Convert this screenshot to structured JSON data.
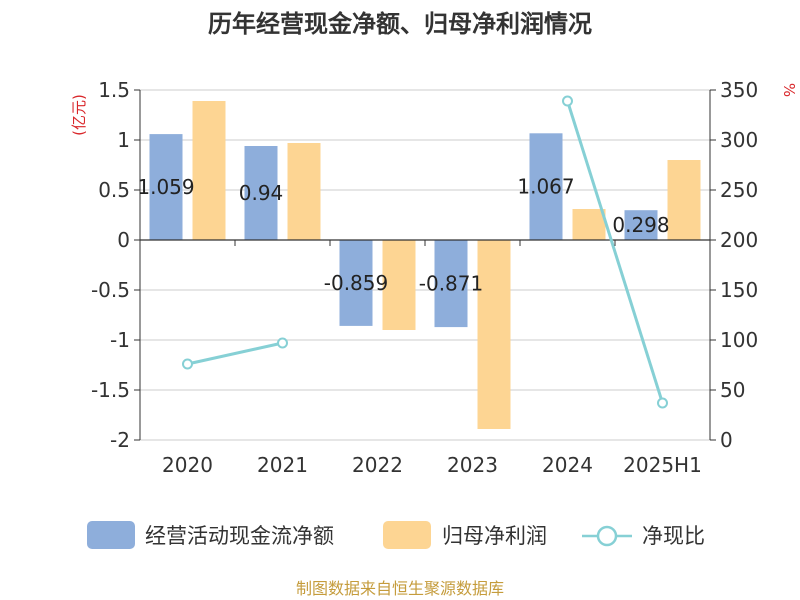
{
  "chart_data": {
    "type": "bar",
    "title": "历年经营现金净额、归母净利润情况",
    "categories": [
      "2020",
      "2021",
      "2022",
      "2023",
      "2024",
      "2025H1"
    ],
    "y_left": {
      "unit_label": "(亿元)",
      "ylim": [
        -2,
        1.5
      ],
      "ticks": [
        "1.5",
        "1",
        "0.5",
        "0",
        "-0.5",
        "-1",
        "-1.5",
        "-2"
      ],
      "tick_values": [
        1.5,
        1,
        0.5,
        0,
        -0.5,
        -1,
        -1.5,
        -2
      ]
    },
    "y_right": {
      "unit_label": "%",
      "ylim": [
        0,
        350
      ],
      "ticks": [
        "350",
        "300",
        "250",
        "200",
        "150",
        "100",
        "50",
        "0"
      ],
      "tick_values": [
        350,
        300,
        250,
        200,
        150,
        100,
        50,
        0
      ]
    },
    "grid": true,
    "legend_position": "bottom",
    "series": [
      {
        "name": "经营活动现金流净额",
        "type": "bar",
        "axis": "left",
        "color": "#8eaedb",
        "values": [
          1.059,
          0.94,
          -0.859,
          -0.871,
          1.067,
          0.298
        ],
        "labels": [
          "1.059",
          "0.94",
          "-0.859",
          "-0.871",
          "1.067",
          "0.298"
        ]
      },
      {
        "name": "归母净利润",
        "type": "bar",
        "axis": "left",
        "color": "#fdd593",
        "values": [
          1.39,
          0.97,
          -0.9,
          -1.89,
          0.31,
          0.8
        ]
      },
      {
        "name": "净现比",
        "type": "line",
        "axis": "right",
        "color": "#86d0d5",
        "values": [
          76,
          97,
          null,
          null,
          339,
          37
        ]
      }
    ]
  },
  "footer": {
    "source": "制图数据来自恒生聚源数据库"
  },
  "colors": {
    "title": "#333333",
    "axis_unit": "#d9262a",
    "axis_text": "#333333",
    "grid": "#cccccc",
    "footer": "#c59c3c"
  }
}
